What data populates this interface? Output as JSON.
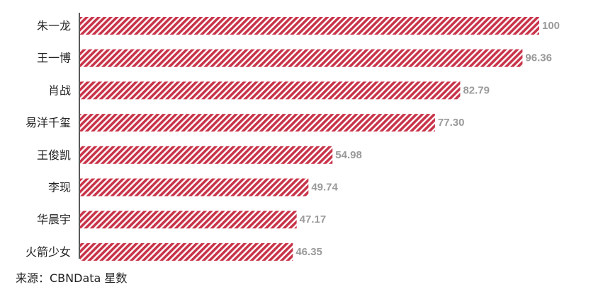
{
  "source_note": "来源：CBNData 星数",
  "colors": {
    "bar_stripe": "#c8344a",
    "bar_gap": "#ffffff",
    "axis": "#222222",
    "category_text": "#222222",
    "value_text": "#9a9a9a"
  },
  "chart_data": {
    "type": "bar",
    "orientation": "horizontal",
    "bar_pattern": "diagonal-stripes",
    "categories": [
      "朱一龙",
      "王一博",
      "肖战",
      "易洋千玺",
      "王俊凯",
      "李现",
      "华晨宇",
      "火箭少女"
    ],
    "values": [
      100,
      96.36,
      82.79,
      77.3,
      54.98,
      49.74,
      47.17,
      46.35
    ],
    "value_labels": [
      "100",
      "96.36",
      "82.79",
      "77.30",
      "54.98",
      "49.74",
      "47.17",
      "46.35"
    ],
    "title": "",
    "xlabel": "",
    "ylabel": "",
    "xlim": [
      0,
      100
    ],
    "grid": false,
    "legend": "none"
  }
}
